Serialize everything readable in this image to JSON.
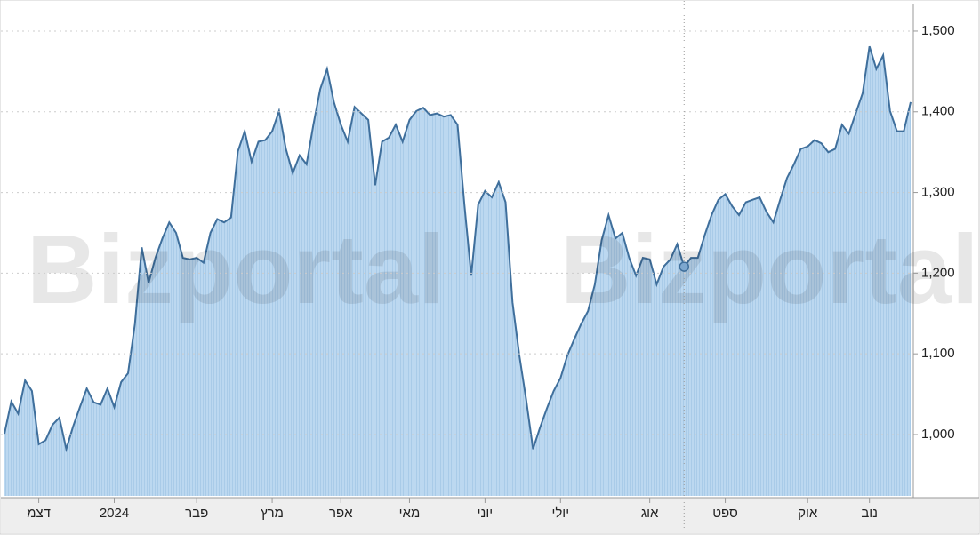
{
  "chart_data": {
    "type": "area",
    "watermark": "Bizportal",
    "color": "#3f6f9c",
    "fill": "#b9d6ef",
    "ylim": [
      924,
      1533
    ],
    "yticks": [
      {
        "value": 1000,
        "label": "1,000"
      },
      {
        "value": 1100,
        "label": "1,100"
      },
      {
        "value": 1200,
        "label": "1,200"
      },
      {
        "value": 1300,
        "label": "1,300"
      },
      {
        "value": 1400,
        "label": "1,400"
      },
      {
        "value": 1500,
        "label": "1,500"
      }
    ],
    "xlim": [
      0,
      132
    ],
    "xticks": [
      {
        "value": 5,
        "label": "דצמ"
      },
      {
        "value": 16,
        "label": "2024"
      },
      {
        "value": 28,
        "label": "פבר"
      },
      {
        "value": 39,
        "label": "מרץ"
      },
      {
        "value": 49,
        "label": "אפר"
      },
      {
        "value": 59,
        "label": "מאי"
      },
      {
        "value": 70,
        "label": "יוני"
      },
      {
        "value": 81,
        "label": "יולי"
      },
      {
        "value": 94,
        "label": "אוג"
      },
      {
        "value": 105,
        "label": "ספט"
      },
      {
        "value": 117,
        "label": "אוק"
      },
      {
        "value": 126,
        "label": "נוב"
      }
    ],
    "grid": true,
    "series": [
      {
        "values": [
          1001,
          1041,
          1026,
          1067,
          1054,
          988,
          993,
          1012,
          1021,
          982,
          1010,
          1034,
          1057,
          1040,
          1037,
          1057,
          1034,
          1065,
          1076,
          1137,
          1232,
          1188,
          1219,
          1243,
          1263,
          1250,
          1219,
          1217,
          1219,
          1213,
          1250,
          1267,
          1263,
          1269,
          1351,
          1376,
          1338,
          1363,
          1365,
          1376,
          1401,
          1354,
          1324,
          1346,
          1335,
          1384,
          1428,
          1453,
          1412,
          1384,
          1363,
          1406,
          1398,
          1390,
          1309,
          1363,
          1368,
          1384,
          1363,
          1390,
          1401,
          1405,
          1396,
          1398,
          1394,
          1396,
          1384,
          1285,
          1197,
          1285,
          1302,
          1294,
          1313,
          1288,
          1164,
          1098,
          1043,
          982,
          1008,
          1032,
          1054,
          1070,
          1098,
          1118,
          1137,
          1153,
          1186,
          1241,
          1272,
          1243,
          1250,
          1219,
          1197,
          1219,
          1217,
          1186,
          1208,
          1217,
          1236,
          1208,
          1219,
          1219,
          1247,
          1272,
          1291,
          1298,
          1283,
          1272,
          1288,
          1291,
          1294,
          1276,
          1263,
          1291,
          1318,
          1335,
          1354,
          1357,
          1365,
          1361,
          1350,
          1354,
          1384,
          1373,
          1398,
          1423,
          1481,
          1453,
          1470,
          1401,
          1376,
          1376,
          1412
        ]
      }
    ]
  }
}
